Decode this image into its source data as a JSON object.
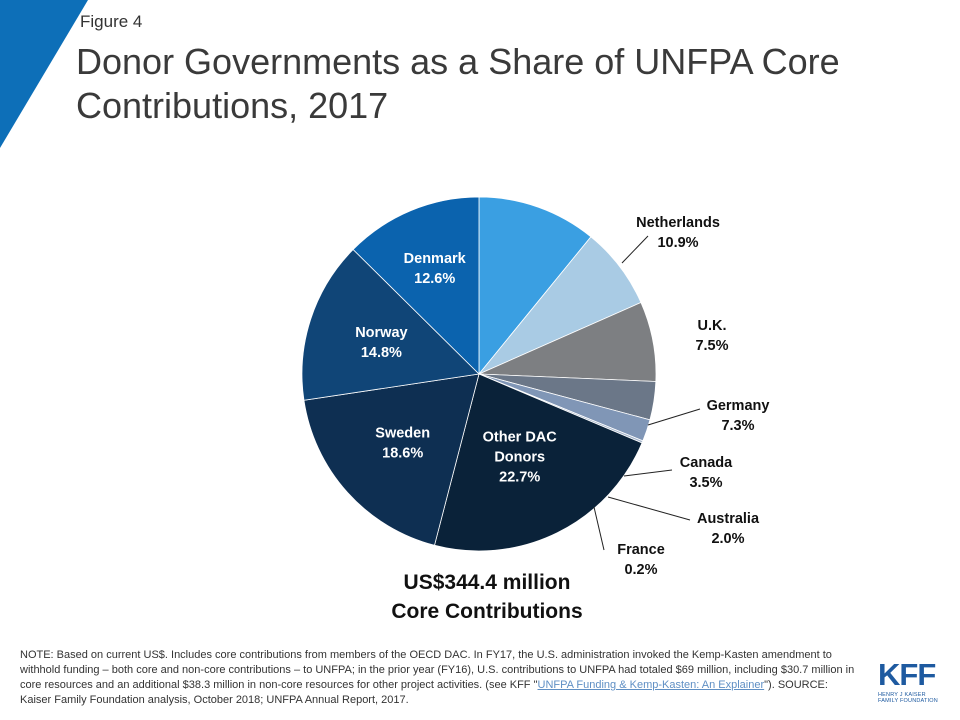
{
  "figure_label": "Figure 4",
  "title": "Donor Governments as a Share of UNFPA Core Contributions, 2017",
  "total_line1": "US$344.4 million",
  "total_line2": "Core Contributions",
  "note": {
    "text_before": "NOTE: Based on current US$. Includes core contributions from members of the OECD DAC. In FY17, the U.S. administration invoked the Kemp-Kasten amendment to withhold funding – both core and non-core contributions – to UNFPA; in the prior year (FY16), U.S. contributions to UNFPA had totaled $69 million, including $30.7 million in core resources and an additional $38.3 million in non-core resources for other project activities. (see KFF \"",
    "link_text": "UNFPA Funding & Kemp-Kasten: An Explainer",
    "text_after": "\"). SOURCE: Kaiser Family Foundation analysis, October 2018; UNFPA Annual Report, 2017."
  },
  "logo": {
    "mark": "KFF",
    "sub1": "HENRY J KAISER",
    "sub2": "FAMILY FOUNDATION"
  },
  "colors": {
    "corner": "#0d6fb8"
  },
  "chart_data": {
    "type": "pie",
    "title": "Donor Governments as a Share of UNFPA Core Contributions, 2017",
    "unit": "%",
    "start": "12 o'clock, clockwise",
    "slices": [
      {
        "label": "Netherlands",
        "value": 10.9,
        "value_label": "10.9%",
        "color": "#3a9fe2",
        "label_position": "outside"
      },
      {
        "label": "U.K.",
        "value": 7.5,
        "value_label": "7.5%",
        "color": "#a9cbe4",
        "label_position": "outside"
      },
      {
        "label": "Germany",
        "value": 7.3,
        "value_label": "7.3%",
        "color": "#7d7f82",
        "label_position": "outside"
      },
      {
        "label": "Canada",
        "value": 3.5,
        "value_label": "3.5%",
        "color": "#6b7788",
        "label_position": "outside"
      },
      {
        "label": "Australia",
        "value": 2.0,
        "value_label": "2.0%",
        "color": "#8096b6",
        "label_position": "outside"
      },
      {
        "label": "France",
        "value": 0.2,
        "value_label": "0.2%",
        "color": "#a6b6cc",
        "label_position": "outside"
      },
      {
        "label": "Other DAC Donors",
        "value": 22.7,
        "value_label": "22.7%",
        "color": "#0a2239",
        "label_position": "inside"
      },
      {
        "label": "Sweden",
        "value": 18.6,
        "value_label": "18.6%",
        "color": "#0e2f52",
        "label_position": "inside"
      },
      {
        "label": "Norway",
        "value": 14.8,
        "value_label": "14.8%",
        "color": "#104577",
        "label_position": "inside"
      },
      {
        "label": "Denmark",
        "value": 12.6,
        "value_label": "12.6%",
        "color": "#0b63ae",
        "label_position": "inside"
      }
    ]
  }
}
